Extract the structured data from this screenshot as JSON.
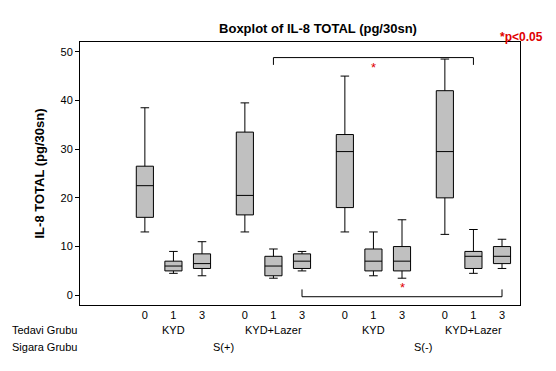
{
  "chart_data": {
    "type": "box",
    "title": "Boxplot of IL-8 TOTAL (pg/30sn)",
    "y_label": "IL-8 TOTAL (pg/30sn)",
    "categories": [
      "0",
      "1",
      "3",
      "0",
      "1",
      "3",
      "0",
      "1",
      "3",
      "0",
      "1",
      "3"
    ],
    "stats": {
      "lower": [
        13,
        4.5,
        4,
        13,
        3.5,
        5,
        13,
        4,
        3.5,
        12.5,
        4.5,
        5.5
      ],
      "q1": [
        16,
        5,
        5.5,
        16.5,
        4,
        5.5,
        18,
        5,
        5,
        20,
        5.5,
        6.5
      ],
      "median": [
        22.5,
        6,
        6.5,
        20.5,
        6,
        7,
        29.5,
        7,
        7,
        29.5,
        8,
        8
      ],
      "q3": [
        26.5,
        7,
        8.5,
        33.5,
        8,
        8.5,
        33,
        9.5,
        10,
        42,
        9,
        10
      ],
      "upper": [
        38.5,
        9,
        11,
        39.5,
        9.5,
        9,
        45,
        13,
        15.5,
        48.5,
        13.5,
        11.5
      ]
    },
    "color": "#c0c0c0",
    "group_rows": [
      {
        "label": "Tedavi Grubu",
        "groups": [
          {
            "label": "KYD",
            "from": 0,
            "to": 2
          },
          {
            "label": "KYD+Lazer",
            "from": 3,
            "to": 5
          },
          {
            "label": "KYD",
            "from": 6,
            "to": 8
          },
          {
            "label": "KYD+Lazer",
            "from": 9,
            "to": 11
          }
        ]
      },
      {
        "label": "Sigara Grubu",
        "groups": [
          {
            "label": "S(+)",
            "from": 0,
            "to": 5
          },
          {
            "label": "S(-)",
            "from": 6,
            "to": 11
          }
        ]
      }
    ],
    "brackets": [
      {
        "from": 4,
        "to": 10,
        "y": 48.8,
        "label": "*"
      },
      {
        "from": 5,
        "to": 11,
        "y": -0.3,
        "label": "*"
      }
    ],
    "note": "*p<0.05",
    "ylim": [
      -2,
      52
    ],
    "yticks": [
      0,
      10,
      20,
      30,
      40,
      50
    ],
    "grid": false
  }
}
